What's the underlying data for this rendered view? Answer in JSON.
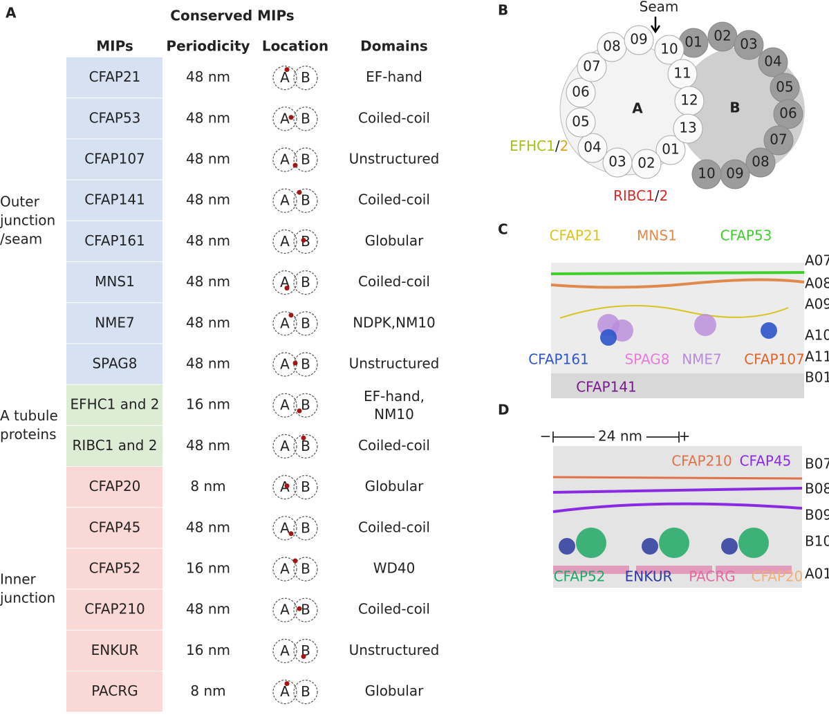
{
  "panel_a": {
    "label": "A",
    "title": "Conserved MIPs",
    "headers": [
      "MIPs",
      "Periodicity",
      "Location",
      "Domains"
    ],
    "location_letters": [
      "A",
      "B"
    ],
    "groups": [
      {
        "label_lines": [
          "Outer",
          "junction",
          "/seam"
        ],
        "color": "#d6e1f1",
        "rows": [
          [
            "CFAP21",
            "48 nm",
            "EF-hand"
          ],
          [
            "CFAP53",
            "48 nm",
            "Coiled-coil"
          ],
          [
            "CFAP107",
            "48 nm",
            "Unstructured"
          ],
          [
            "CFAP141",
            "48 nm",
            "Coiled-coil"
          ],
          [
            "CFAP161",
            "48 nm",
            "Globular"
          ],
          [
            "MNS1",
            "48 nm",
            "Coiled-coil"
          ],
          [
            "NME7",
            "48 nm",
            "NDPK,NM10"
          ],
          [
            "SPAG8",
            "48 nm",
            "Unstructured"
          ]
        ]
      },
      {
        "label_lines": [
          "A tubule",
          "proteins"
        ],
        "color": "#dcecd5",
        "rows": [
          [
            "EFHC1 and 2",
            "16 nm",
            "EF-hand, NM10"
          ],
          [
            "RIBC1 and 2",
            "48 nm",
            "Coiled-coil"
          ]
        ]
      },
      {
        "label_lines": [
          "Inner",
          "junction"
        ],
        "color": "#f9d8d6",
        "rows": [
          [
            "CFAP20",
            "8 nm",
            "Globular"
          ],
          [
            "CFAP45",
            "48 nm",
            "Coiled-coil"
          ],
          [
            "CFAP52",
            "16 nm",
            "WD40"
          ],
          [
            "CFAP210",
            "48 nm",
            "Coiled-coil"
          ],
          [
            "ENKUR",
            "16 nm",
            "Unstructured"
          ],
          [
            "PACRG",
            "8 nm",
            "Globular"
          ]
        ]
      }
    ]
  },
  "panel_b": {
    "label": "B",
    "seam": "Seam",
    "tubule_a": "A",
    "tubule_b": "B",
    "a_protofilaments": [
      "01",
      "02",
      "03",
      "04",
      "05",
      "06",
      "07",
      "08",
      "09",
      "10",
      "11",
      "12",
      "13"
    ],
    "b_protofilaments": [
      "01",
      "02",
      "03",
      "04",
      "05",
      "06",
      "07",
      "08",
      "09",
      "10"
    ],
    "efhc": {
      "name": "EFHC1",
      "sep": "/",
      "num": "2"
    },
    "ribc": {
      "name": "RIBC1",
      "sep": "/",
      "num": "2"
    }
  },
  "panel_c": {
    "label": "C",
    "proteins": [
      {
        "name": "CFAP21",
        "color": "#d8c41c"
      },
      {
        "name": "MNS1",
        "color": "#df8a4c"
      },
      {
        "name": "CFAP53",
        "color": "#3fcf2c"
      },
      {
        "name": "CFAP161",
        "color": "#2f55c9"
      },
      {
        "name": "SPAG8",
        "color": "#e87ad8"
      },
      {
        "name": "NME7",
        "color": "#b98bdc"
      },
      {
        "name": "CFAP107",
        "color": "#e0632a"
      },
      {
        "name": "CFAP141",
        "color": "#7a1a90"
      }
    ],
    "protofilaments": [
      "A07",
      "A08",
      "A09",
      "A10",
      "A11",
      "B01"
    ]
  },
  "panel_d": {
    "label": "D",
    "scale": "24 nm",
    "minus": "−",
    "plus": "+",
    "proteins": [
      {
        "name": "CFAP210",
        "color": "#e0714a"
      },
      {
        "name": "CFAP45",
        "color": "#8a2be2"
      },
      {
        "name": "CFAP52",
        "color": "#21a866"
      },
      {
        "name": "ENKUR",
        "color": "#2c3a9c"
      },
      {
        "name": "PACRG",
        "color": "#e06aa0"
      },
      {
        "name": "CFAP20",
        "color": "#f0b07a"
      }
    ],
    "protofilaments": [
      "B07",
      "B08",
      "B09",
      "B10",
      "A01"
    ]
  }
}
